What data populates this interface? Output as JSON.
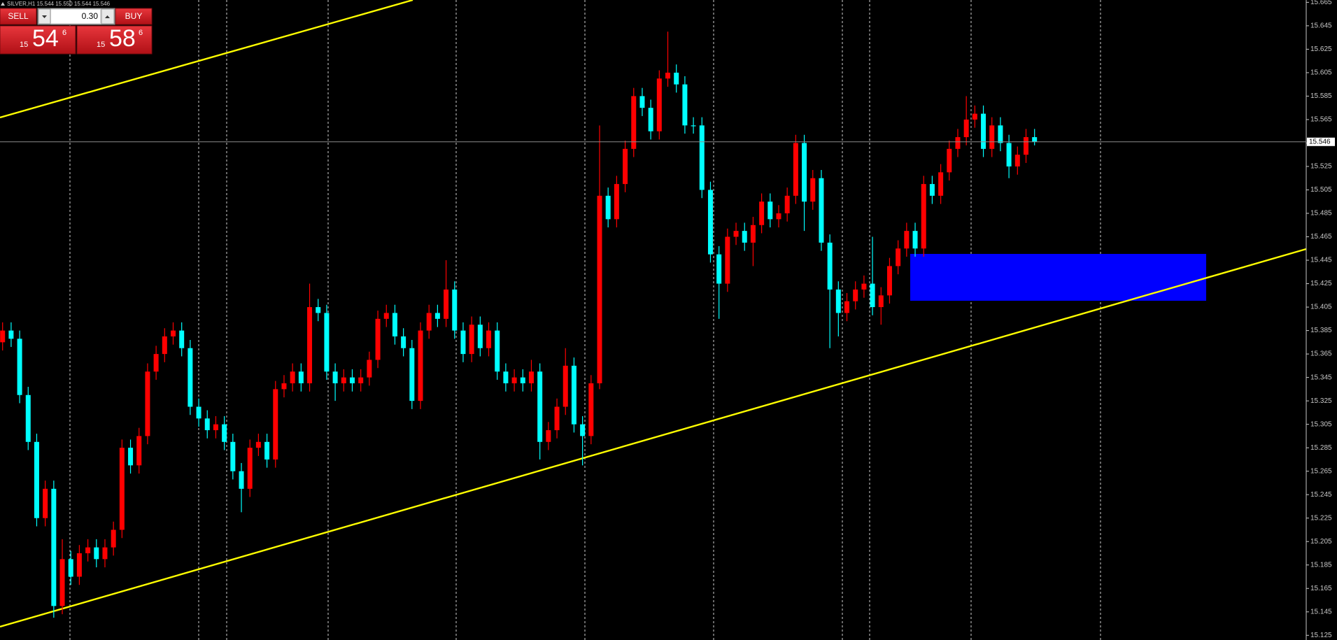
{
  "toolbar": {
    "symbol_info": "SILVER,H1 15.544 15.550 15.544 15.546"
  },
  "trade_panel": {
    "sell": "SELL",
    "buy": "BUY",
    "volume": "0.30",
    "bid": {
      "big": "15",
      "main": "54",
      "small": "6"
    },
    "ask": {
      "big": "15",
      "main": "58",
      "small": "6"
    }
  },
  "chart_data": {
    "type": "candlestick",
    "open": [
      15.375,
      15.385,
      15.378,
      15.33,
      15.29,
      15.225,
      15.25,
      15.15,
      15.19,
      15.175,
      15.195,
      15.2,
      15.19,
      15.2,
      15.215,
      15.285,
      15.27,
      15.295,
      15.35,
      15.365,
      15.38,
      15.385,
      15.37,
      15.32,
      15.31,
      15.3,
      15.305,
      15.29,
      15.265,
      15.25,
      15.285,
      15.29,
      15.275,
      15.335,
      15.34,
      15.35,
      15.34,
      15.405,
      15.4,
      15.35,
      15.34,
      15.345,
      15.34,
      15.345,
      15.36,
      15.395,
      15.4,
      15.38,
      15.37,
      15.325,
      15.385,
      15.4,
      15.395,
      15.42,
      15.385,
      15.365,
      15.39,
      15.37,
      15.385,
      15.35,
      15.34,
      15.345,
      15.34,
      15.35,
      15.29,
      15.3,
      15.32,
      15.355,
      15.305,
      15.295,
      15.34,
      15.5,
      15.48,
      15.51,
      15.54,
      15.585,
      15.575,
      15.555,
      15.6,
      15.605,
      15.595,
      15.56,
      15.56,
      15.505,
      15.45,
      15.425,
      15.465,
      15.47,
      15.46,
      15.475,
      15.495,
      15.48,
      15.485,
      15.5,
      15.545,
      15.495,
      15.515,
      15.46,
      15.42,
      15.4,
      15.41,
      15.42,
      15.425,
      15.405,
      15.415,
      15.44,
      15.455,
      15.47,
      15.455,
      15.51,
      15.5,
      15.52,
      15.54,
      15.55,
      15.565,
      15.57,
      15.54,
      15.56,
      15.545,
      15.525,
      15.535,
      15.55
    ],
    "high": [
      15.392,
      15.392,
      15.385,
      15.337,
      15.297,
      15.257,
      15.257,
      15.207,
      15.197,
      15.202,
      15.207,
      15.207,
      15.207,
      15.222,
      15.292,
      15.292,
      15.302,
      15.357,
      15.372,
      15.387,
      15.392,
      15.392,
      15.377,
      15.327,
      15.317,
      15.312,
      15.312,
      15.297,
      15.272,
      15.292,
      15.297,
      15.297,
      15.342,
      15.347,
      15.357,
      15.357,
      15.425,
      15.412,
      15.407,
      15.357,
      15.352,
      15.352,
      15.352,
      15.367,
      15.402,
      15.407,
      15.407,
      15.387,
      15.377,
      15.392,
      15.407,
      15.407,
      15.445,
      15.427,
      15.392,
      15.397,
      15.397,
      15.392,
      15.392,
      15.357,
      15.352,
      15.352,
      15.36,
      15.357,
      15.307,
      15.327,
      15.37,
      15.362,
      15.312,
      15.347,
      15.56,
      15.507,
      15.517,
      15.547,
      15.592,
      15.592,
      15.582,
      15.607,
      15.64,
      15.612,
      15.602,
      15.567,
      15.567,
      15.512,
      15.457,
      15.472,
      15.477,
      15.477,
      15.482,
      15.502,
      15.502,
      15.492,
      15.507,
      15.552,
      15.552,
      15.522,
      15.522,
      15.467,
      15.427,
      15.417,
      15.427,
      15.432,
      15.465,
      15.422,
      15.447,
      15.462,
      15.477,
      15.477,
      15.517,
      15.517,
      15.527,
      15.547,
      15.557,
      15.585,
      15.577,
      15.577,
      15.567,
      15.567,
      15.552,
      15.542,
      15.557,
      15.557
    ],
    "low": [
      15.368,
      15.371,
      15.323,
      15.283,
      15.218,
      15.218,
      15.14,
      15.143,
      15.168,
      15.168,
      15.188,
      15.183,
      15.183,
      15.193,
      15.208,
      15.263,
      15.263,
      15.288,
      15.343,
      15.358,
      15.373,
      15.363,
      15.313,
      15.303,
      15.293,
      15.293,
      15.283,
      15.258,
      15.23,
      15.243,
      15.278,
      15.268,
      15.268,
      15.328,
      15.333,
      15.333,
      15.333,
      15.393,
      15.343,
      15.325,
      15.333,
      15.333,
      15.333,
      15.338,
      15.353,
      15.388,
      15.373,
      15.363,
      15.318,
      15.318,
      15.378,
      15.388,
      15.388,
      15.378,
      15.358,
      15.358,
      15.363,
      15.363,
      15.343,
      15.333,
      15.333,
      15.333,
      15.333,
      15.275,
      15.283,
      15.293,
      15.313,
      15.298,
      15.27,
      15.288,
      15.335,
      15.473,
      15.473,
      15.503,
      15.533,
      15.568,
      15.548,
      15.548,
      15.593,
      15.588,
      15.553,
      15.553,
      15.498,
      15.443,
      15.395,
      15.418,
      15.458,
      15.453,
      15.44,
      15.468,
      15.473,
      15.473,
      15.478,
      15.493,
      15.47,
      15.488,
      15.453,
      15.37,
      15.38,
      15.393,
      15.403,
      15.413,
      15.398,
      15.39,
      15.408,
      15.433,
      15.448,
      15.448,
      15.448,
      15.493,
      15.493,
      15.513,
      15.533,
      15.543,
      15.558,
      15.533,
      15.533,
      15.538,
      15.515,
      15.518,
      15.528,
      15.543
    ],
    "close": [
      15.385,
      15.378,
      15.33,
      15.29,
      15.225,
      15.25,
      15.15,
      15.19,
      15.175,
      15.195,
      15.2,
      15.19,
      15.2,
      15.215,
      15.285,
      15.27,
      15.295,
      15.35,
      15.365,
      15.38,
      15.385,
      15.37,
      15.32,
      15.31,
      15.3,
      15.305,
      15.29,
      15.265,
      15.25,
      15.285,
      15.29,
      15.275,
      15.335,
      15.34,
      15.35,
      15.34,
      15.405,
      15.4,
      15.35,
      15.34,
      15.345,
      15.34,
      15.345,
      15.36,
      15.395,
      15.4,
      15.38,
      15.37,
      15.325,
      15.385,
      15.4,
      15.395,
      15.42,
      15.385,
      15.365,
      15.39,
      15.37,
      15.385,
      15.35,
      15.34,
      15.345,
      15.34,
      15.35,
      15.29,
      15.3,
      15.32,
      15.355,
      15.305,
      15.295,
      15.34,
      15.5,
      15.48,
      15.51,
      15.54,
      15.585,
      15.575,
      15.555,
      15.6,
      15.605,
      15.595,
      15.56,
      15.56,
      15.505,
      15.45,
      15.425,
      15.465,
      15.47,
      15.46,
      15.475,
      15.495,
      15.48,
      15.485,
      15.5,
      15.545,
      15.495,
      15.515,
      15.46,
      15.42,
      15.4,
      15.41,
      15.42,
      15.425,
      15.405,
      15.415,
      15.44,
      15.455,
      15.47,
      15.455,
      15.51,
      15.5,
      15.52,
      15.54,
      15.55,
      15.565,
      15.57,
      15.54,
      15.56,
      15.545,
      15.525,
      15.535,
      15.55,
      15.546
    ],
    "up_color": "#ff0000",
    "down_color": "#00ffff",
    "ylim": [
      15.121,
      15.667
    ],
    "yticks": [
      15.665,
      15.645,
      15.625,
      15.605,
      15.585,
      15.565,
      15.545,
      15.525,
      15.505,
      15.485,
      15.465,
      15.445,
      15.425,
      15.405,
      15.385,
      15.365,
      15.345,
      15.325,
      15.305,
      15.285,
      15.265,
      15.245,
      15.225,
      15.205,
      15.185,
      15.165,
      15.145,
      15.125
    ],
    "current_price": 15.546
  }
}
